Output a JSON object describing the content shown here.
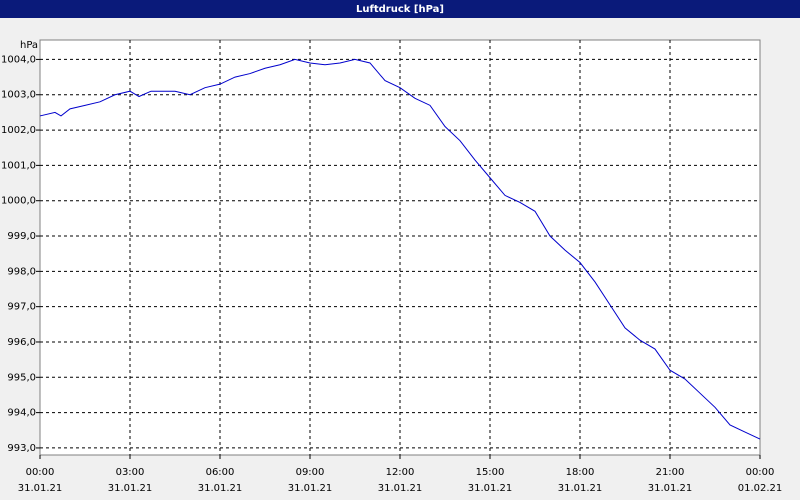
{
  "chart_data": {
    "type": "line",
    "title": "Luftdruck [hPa]",
    "y_unit": "hPa",
    "x": [
      0,
      0.5,
      0.7,
      1,
      1.5,
      2,
      2.5,
      3,
      3.3,
      3.7,
      4.5,
      5,
      5.5,
      6,
      6.5,
      7,
      7.5,
      8,
      8.5,
      9,
      9.5,
      10,
      10.5,
      11,
      11.5,
      12,
      12.5,
      13,
      13.5,
      14,
      14.5,
      15,
      15.5,
      16,
      16.5,
      17,
      17.5,
      18,
      18.5,
      19,
      19.5,
      20,
      20.5,
      21,
      21.5,
      22,
      22.5,
      23,
      23.5,
      24
    ],
    "series": [
      {
        "name": "Luftdruck",
        "color": "#0000cc",
        "values": [
          1002.4,
          1002.5,
          1002.4,
          1002.6,
          1002.7,
          1002.8,
          1003.0,
          1003.1,
          1002.95,
          1003.1,
          1003.1,
          1003.0,
          1003.2,
          1003.3,
          1003.5,
          1003.6,
          1003.75,
          1003.85,
          1004.0,
          1003.9,
          1003.85,
          1003.9,
          1004.0,
          1003.9,
          1003.4,
          1003.2,
          1002.9,
          1002.7,
          1002.1,
          1001.7,
          1001.15,
          1000.65,
          1000.15,
          999.95,
          999.7,
          999.0,
          998.6,
          998.25,
          997.7,
          997.05,
          996.4,
          996.05,
          995.8,
          995.2,
          994.95,
          994.55,
          994.15,
          993.65,
          993.45,
          993.25
        ]
      }
    ],
    "xlim": [
      0,
      24
    ],
    "xticks": [
      {
        "value": 0,
        "label": "00:00"
      },
      {
        "value": 3,
        "label": "03:00"
      },
      {
        "value": 6,
        "label": "06:00"
      },
      {
        "value": 9,
        "label": "09:00"
      },
      {
        "value": 12,
        "label": "12:00"
      },
      {
        "value": 15,
        "label": "15:00"
      },
      {
        "value": 18,
        "label": "18:00"
      },
      {
        "value": 21,
        "label": "21:00"
      },
      {
        "value": 24,
        "label": "00:00"
      }
    ],
    "xtick_dates": [
      "31.01.21",
      "31.01.21",
      "31.01.21",
      "31.01.21",
      "31.01.21",
      "31.01.21",
      "31.01.21",
      "31.01.21",
      "01.02.21"
    ],
    "ylim": [
      992.8,
      1004.55
    ],
    "yticks": [
      {
        "value": 993,
        "label": "993,0"
      },
      {
        "value": 994,
        "label": "994,0"
      },
      {
        "value": 995,
        "label": "995,0"
      },
      {
        "value": 996,
        "label": "996,0"
      },
      {
        "value": 997,
        "label": "997,0"
      },
      {
        "value": 998,
        "label": "998,0"
      },
      {
        "value": 999,
        "label": "999,0"
      },
      {
        "value": 1000,
        "label": "1000,0"
      },
      {
        "value": 1001,
        "label": "1001,0"
      },
      {
        "value": 1002,
        "label": "1002,0"
      },
      {
        "value": 1003,
        "label": "1003,0"
      },
      {
        "value": 1004,
        "label": "1004,0"
      }
    ],
    "grid": true
  }
}
